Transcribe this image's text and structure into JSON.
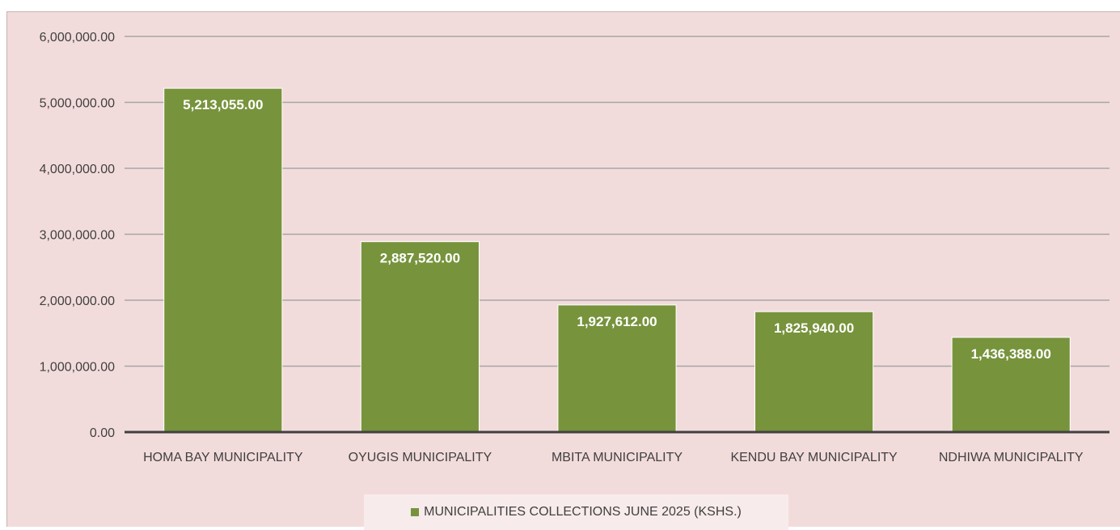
{
  "chart_data": {
    "type": "bar",
    "categories": [
      "HOMA BAY MUNICIPALITY",
      "OYUGIS MUNICIPALITY",
      "MBITA MUNICIPALITY",
      "KENDU BAY MUNICIPALITY",
      "NDHIWA MUNICIPALITY"
    ],
    "series": [
      {
        "name": "MUNICIPALITIES COLLECTIONS  JUNE 2025 (KSHS.)",
        "values": [
          5213055,
          2887520,
          1927612,
          1825940,
          1436388
        ],
        "labels": [
          "5,213,055.00",
          "2,887,520.00",
          "1,927,612.00",
          "1,825,940.00",
          "1,436,388.00"
        ]
      }
    ],
    "y_ticks": [
      0,
      1000000,
      2000000,
      3000000,
      4000000,
      5000000,
      6000000
    ],
    "y_tick_labels": [
      "0.00",
      "1,000,000.00",
      "2,000,000.00",
      "3,000,000.00",
      "4,000,000.00",
      "5,000,000.00",
      "6,000,000.00"
    ],
    "ylim": [
      0,
      6000000
    ],
    "grid": true,
    "legend_position": "bottom",
    "colors": {
      "bar": "#77933c",
      "background": "#f2dcdb",
      "gridline": "#a6a6a6",
      "axis": "#404040",
      "legend_background": "#f8ebeb"
    }
  }
}
